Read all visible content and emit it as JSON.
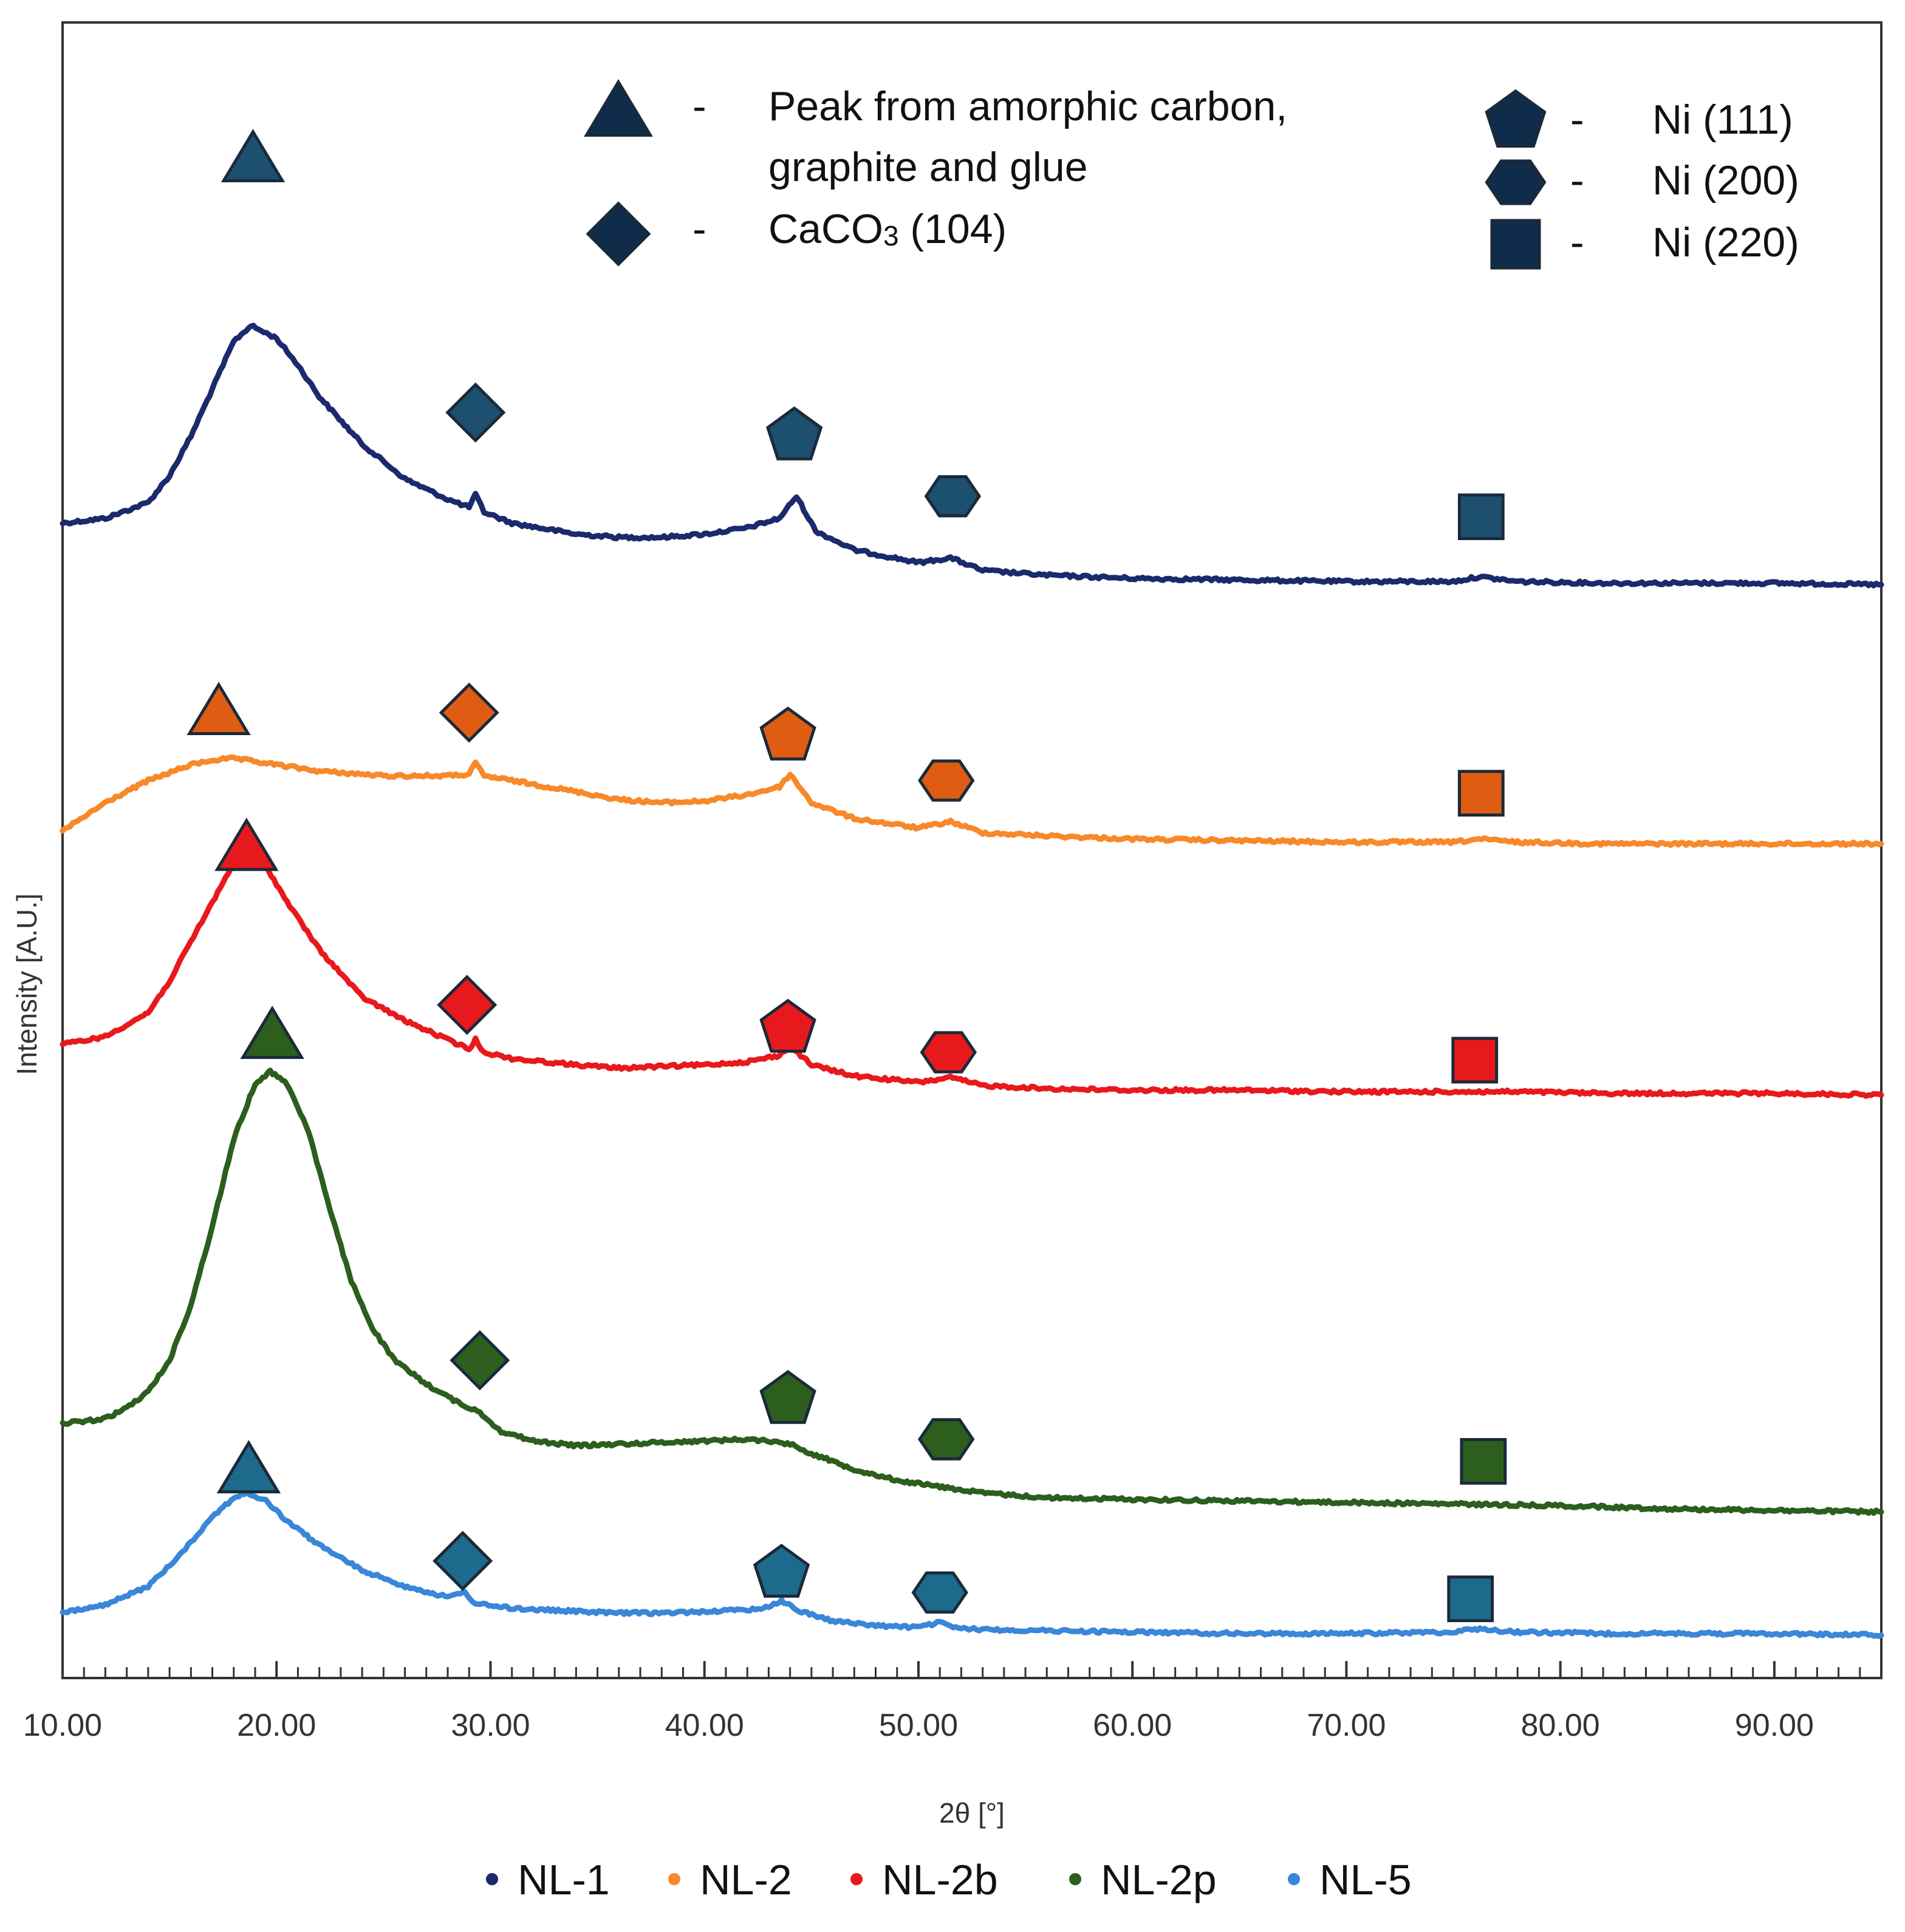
{
  "chart_data": {
    "type": "line",
    "title": "",
    "xlabel": "2θ [°]",
    "ylabel": "Intensity [A.U.]",
    "xlim": [
      10,
      95
    ],
    "xticks": [
      "10.00",
      "20.00",
      "30.00",
      "40.00",
      "50.00",
      "60.00",
      "70.00",
      "80.00",
      "90.00"
    ],
    "xtick_values": [
      10,
      20,
      30,
      40,
      50,
      60,
      70,
      80,
      90
    ],
    "y_scale": "arbitrary units, stacked (offset) patterns",
    "ylim": [
      0,
      100
    ],
    "series": [
      {
        "name": "NL-1",
        "color": "#1a2a6c",
        "x": [
          10,
          12,
          14,
          15,
          16,
          17,
          18,
          18.8,
          20,
          21,
          22,
          24,
          26,
          28,
          29,
          29.3,
          29.7,
          31,
          34,
          36,
          38,
          40,
          42,
          43.5,
          44.3,
          45.2,
          47,
          50,
          51.5,
          53,
          56,
          60,
          65,
          70,
          75,
          76.2,
          78,
          82,
          86,
          90,
          95
        ],
        "y": [
          71.5,
          71.8,
          72.8,
          74.5,
          77.0,
          80.0,
          83.0,
          84.0,
          83.2,
          81.5,
          79.5,
          76.5,
          74.3,
          73.0,
          72.5,
          73.3,
          72.2,
          71.5,
          70.8,
          70.6,
          70.6,
          70.8,
          71.2,
          71.8,
          73.2,
          71.0,
          69.8,
          69.0,
          69.3,
          68.5,
          68.2,
          68.0,
          67.9,
          67.8,
          67.8,
          68.1,
          67.8,
          67.7,
          67.7,
          67.7,
          67.6
        ]
      },
      {
        "name": "NL-2",
        "color": "#f7892b",
        "x": [
          10,
          12,
          14,
          16,
          17,
          18,
          20,
          22,
          25,
          28,
          29,
          29.3,
          29.7,
          31,
          34,
          36,
          38,
          40,
          42,
          43.5,
          44,
          45,
          47,
          50,
          51.5,
          53,
          56,
          60,
          65,
          70,
          75,
          76.2,
          78,
          82,
          86,
          90,
          95
        ],
        "y": [
          52.0,
          53.8,
          55.2,
          56.2,
          56.5,
          56.6,
          56.2,
          55.8,
          55.5,
          55.5,
          55.6,
          56.3,
          55.5,
          55.2,
          54.5,
          54.0,
          53.8,
          53.9,
          54.3,
          54.8,
          55.6,
          53.8,
          52.8,
          52.2,
          52.6,
          51.9,
          51.7,
          51.5,
          51.4,
          51.3,
          51.3,
          51.5,
          51.3,
          51.2,
          51.2,
          51.2,
          51.2
        ]
      },
      {
        "name": "NL-2b",
        "color": "#e8191c",
        "x": [
          10,
          12,
          14,
          15,
          16,
          17,
          18,
          18.6,
          19.5,
          20.5,
          22,
          24,
          26,
          28,
          29,
          29.3,
          29.7,
          31,
          34,
          36,
          38,
          40,
          42,
          43.5,
          44,
          45,
          47,
          50,
          51.5,
          53,
          56,
          60,
          65,
          70,
          75,
          78,
          82,
          86,
          90,
          95
        ],
        "y": [
          38.5,
          39.0,
          40.5,
          42.5,
          45.0,
          47.5,
          50.0,
          50.6,
          49.8,
          47.5,
          44.5,
          41.5,
          40.0,
          38.8,
          38.2,
          38.8,
          38.0,
          37.6,
          37.2,
          37.0,
          37.1,
          37.2,
          37.4,
          37.8,
          38.4,
          37.2,
          36.5,
          36.1,
          36.4,
          35.9,
          35.7,
          35.6,
          35.6,
          35.5,
          35.5,
          35.5,
          35.4,
          35.4,
          35.4,
          35.3
        ]
      },
      {
        "name": "NL-2p",
        "color": "#2c5e1e",
        "x": [
          10,
          12,
          13,
          14,
          15,
          16,
          17,
          18,
          19,
          19.7,
          20.5,
          21.5,
          22.5,
          23.5,
          24.5,
          25.5,
          27,
          28.5,
          29.5,
          30.5,
          32,
          34,
          36,
          38,
          40,
          42,
          43,
          44,
          45,
          47,
          49,
          51,
          53,
          56,
          60,
          65,
          70,
          75,
          80,
          85,
          90,
          95
        ],
        "y": [
          14.5,
          14.8,
          15.5,
          16.5,
          18.5,
          22.0,
          27.0,
          32.5,
          36.0,
          36.8,
          36.0,
          33.0,
          28.0,
          23.5,
          20.5,
          18.5,
          17.0,
          15.8,
          15.2,
          14.0,
          13.4,
          13.1,
          13.2,
          13.3,
          13.4,
          13.5,
          13.4,
          13.2,
          12.6,
          11.6,
          10.9,
          10.5,
          10.1,
          9.8,
          9.7,
          9.6,
          9.5,
          9.4,
          9.3,
          9.1,
          9.0,
          8.9
        ]
      },
      {
        "name": "NL-5",
        "color": "#3a86d8",
        "x": [
          10,
          12,
          14,
          15,
          16,
          17,
          18,
          18.6,
          19.5,
          20.5,
          22,
          24,
          26,
          28,
          28.8,
          29.3,
          31,
          34,
          36,
          38,
          40,
          42,
          43,
          43.6,
          44.3,
          46,
          48,
          50,
          51,
          52,
          55,
          60,
          65,
          70,
          75,
          76,
          78,
          82,
          86,
          90,
          95
        ],
        "y": [
          2.5,
          3.0,
          4.2,
          5.5,
          7.0,
          8.6,
          9.8,
          10.1,
          9.6,
          8.3,
          6.8,
          5.2,
          4.2,
          3.5,
          3.8,
          3.1,
          2.8,
          2.6,
          2.5,
          2.5,
          2.6,
          2.7,
          2.9,
          3.3,
          2.7,
          2.0,
          1.7,
          1.6,
          1.9,
          1.5,
          1.4,
          1.3,
          1.2,
          1.2,
          1.3,
          1.5,
          1.3,
          1.2,
          1.2,
          1.2,
          1.1
        ]
      }
    ],
    "peak_markers": [
      {
        "series": "NL-1",
        "shape": "triangle",
        "x": 18.9,
        "y": 94.5,
        "color": "#1d4f6e"
      },
      {
        "series": "NL-1",
        "shape": "diamond",
        "x": 29.3,
        "y": 78.5,
        "color": "#1d4f6e"
      },
      {
        "series": "NL-1",
        "shape": "pentagon",
        "x": 44.2,
        "y": 77.0,
        "color": "#1d4f6e"
      },
      {
        "series": "NL-1",
        "shape": "hexagon",
        "x": 51.6,
        "y": 73.2,
        "color": "#1d4f6e"
      },
      {
        "series": "NL-1",
        "shape": "square",
        "x": 76.3,
        "y": 71.9,
        "color": "#1d4f6e"
      },
      {
        "series": "NL-2",
        "shape": "triangle",
        "x": 17.3,
        "y": 59.5,
        "color": "#de5d12"
      },
      {
        "series": "NL-2",
        "shape": "diamond",
        "x": 29.0,
        "y": 59.5,
        "color": "#de5d12"
      },
      {
        "series": "NL-2",
        "shape": "pentagon",
        "x": 43.9,
        "y": 58.0,
        "color": "#de5d12"
      },
      {
        "series": "NL-2",
        "shape": "hexagon",
        "x": 51.3,
        "y": 55.2,
        "color": "#de5d12"
      },
      {
        "series": "NL-2",
        "shape": "square",
        "x": 76.3,
        "y": 54.4,
        "color": "#de5d12"
      },
      {
        "series": "NL-2b",
        "shape": "triangle",
        "x": 18.6,
        "y": 50.9,
        "color": "#e8191c"
      },
      {
        "series": "NL-2b",
        "shape": "diamond",
        "x": 28.9,
        "y": 41.0,
        "color": "#e8191c"
      },
      {
        "series": "NL-2b",
        "shape": "pentagon",
        "x": 43.9,
        "y": 39.5,
        "color": "#e8191c"
      },
      {
        "series": "NL-2b",
        "shape": "hexagon",
        "x": 51.4,
        "y": 38.0,
        "color": "#e8191c"
      },
      {
        "series": "NL-2b",
        "shape": "square",
        "x": 76.0,
        "y": 37.5,
        "color": "#e8191c"
      },
      {
        "series": "NL-2p",
        "shape": "triangle",
        "x": 19.8,
        "y": 39.0,
        "color": "#2c5e1e"
      },
      {
        "series": "NL-2p",
        "shape": "diamond",
        "x": 29.5,
        "y": 18.5,
        "color": "#2c5e1e"
      },
      {
        "series": "NL-2p",
        "shape": "pentagon",
        "x": 43.9,
        "y": 16.0,
        "color": "#2c5e1e"
      },
      {
        "series": "NL-2p",
        "shape": "hexagon",
        "x": 51.3,
        "y": 13.5,
        "color": "#2c5e1e"
      },
      {
        "series": "NL-2p",
        "shape": "square",
        "x": 76.4,
        "y": 12.1,
        "color": "#2c5e1e"
      },
      {
        "series": "NL-5",
        "shape": "triangle",
        "x": 18.7,
        "y": 11.5,
        "color": "#1d6a8c"
      },
      {
        "series": "NL-5",
        "shape": "diamond",
        "x": 28.7,
        "y": 5.8,
        "color": "#1d6a8c"
      },
      {
        "series": "NL-5",
        "shape": "pentagon",
        "x": 43.6,
        "y": 5.0,
        "color": "#1d6a8c"
      },
      {
        "series": "NL-5",
        "shape": "hexagon",
        "x": 51.0,
        "y": 3.8,
        "color": "#1d6a8c"
      },
      {
        "series": "NL-5",
        "shape": "square",
        "x": 75.8,
        "y": 3.4,
        "color": "#1d6a8c"
      }
    ],
    "annotation_key": [
      {
        "shape": "triangle",
        "dash": "-",
        "lines": [
          "Peak from amorphic carbon,",
          "graphite and glue"
        ]
      },
      {
        "shape": "diamond",
        "dash": "-",
        "formula": {
          "base": "CaCO",
          "sub": "3",
          "rest": " (104)"
        }
      },
      {
        "shape": "pentagon",
        "dash": "-",
        "lines": [
          "Ni (111)"
        ]
      },
      {
        "shape": "hexagon",
        "dash": "-",
        "lines": [
          "Ni (200)"
        ]
      },
      {
        "shape": "square",
        "dash": "-",
        "lines": [
          "Ni (220)"
        ]
      }
    ],
    "key_marker_color": "#0f2d4a",
    "legend": {
      "placement": "bottom-center",
      "entries": [
        "NL-1",
        "NL-2",
        "NL-2b",
        "NL-2p",
        "NL-5"
      ]
    },
    "grid": false
  }
}
